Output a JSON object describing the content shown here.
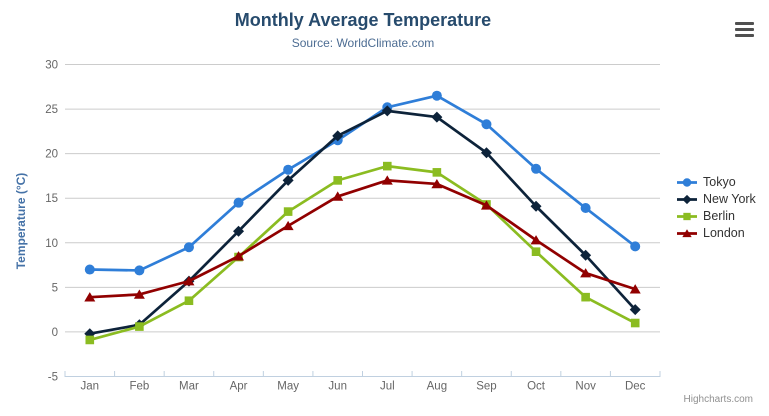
{
  "header": {
    "title": "Monthly Average Temperature",
    "subtitle": "Source: WorldClimate.com",
    "menu_icon": "hamburger-icon"
  },
  "credits": "Highcharts.com",
  "chart_data": {
    "type": "line",
    "title": "Monthly Average Temperature",
    "subtitle": "Source: WorldClimate.com",
    "categories": [
      "Jan",
      "Feb",
      "Mar",
      "Apr",
      "May",
      "Jun",
      "Jul",
      "Aug",
      "Sep",
      "Oct",
      "Nov",
      "Dec"
    ],
    "xlabel": "",
    "ylabel": "Temperature (°C)",
    "ylim": [
      -5,
      30
    ],
    "yticks": [
      -5,
      0,
      5,
      10,
      15,
      20,
      25,
      30
    ],
    "grid": true,
    "legend_position": "right",
    "series": [
      {
        "name": "Tokyo",
        "marker": "circle",
        "color": "#2f7ed8",
        "values": [
          7.0,
          6.9,
          9.5,
          14.5,
          18.2,
          21.5,
          25.2,
          26.5,
          23.3,
          18.3,
          13.9,
          9.6
        ]
      },
      {
        "name": "New York",
        "marker": "diamond",
        "color": "#0d233a",
        "values": [
          -0.2,
          0.8,
          5.7,
          11.3,
          17.0,
          22.0,
          24.8,
          24.1,
          20.1,
          14.1,
          8.6,
          2.5
        ]
      },
      {
        "name": "Berlin",
        "marker": "square",
        "color": "#8bbc21",
        "values": [
          -0.9,
          0.6,
          3.5,
          8.4,
          13.5,
          17.0,
          18.6,
          17.9,
          14.3,
          9.0,
          3.9,
          1.0
        ]
      },
      {
        "name": "London",
        "marker": "triangle",
        "color": "#910000",
        "values": [
          3.9,
          4.2,
          5.7,
          8.5,
          11.9,
          15.2,
          17.0,
          16.6,
          14.2,
          10.3,
          6.6,
          4.8
        ]
      }
    ]
  },
  "style_colors": {
    "title": "#274b6d",
    "subtitle": "#4d6d93",
    "axis_label": "#666666",
    "y_axis_title": "#4572a7",
    "grid_line": "#cccccc",
    "axis_line": "#c0d0e0",
    "legend_text": "#333333",
    "credits": "#909090"
  }
}
